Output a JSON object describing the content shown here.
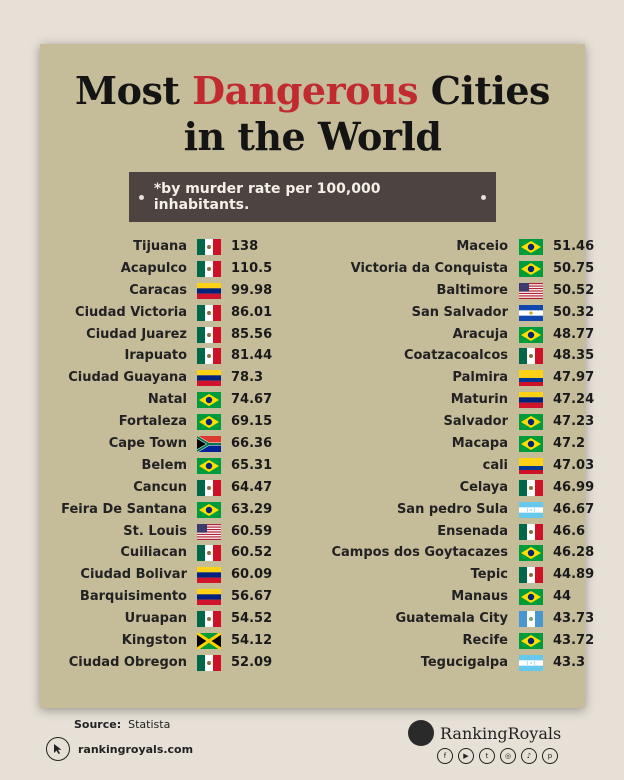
{
  "title": {
    "line1_pre": "Most",
    "line1_accent": "Dangerous",
    "line1_post": "Cities",
    "line2": "in the World"
  },
  "subtitle": "*by murder rate per 100,000 inhabitants.",
  "left_column": [
    {
      "city": "Tijuana",
      "flag": "mexico",
      "rate": "138"
    },
    {
      "city": "Acapulco",
      "flag": "mexico",
      "rate": "110.5"
    },
    {
      "city": "Caracas",
      "flag": "venezuela",
      "rate": "99.98"
    },
    {
      "city": "Ciudad Victoria",
      "flag": "mexico",
      "rate": "86.01"
    },
    {
      "city": "Ciudad Juarez",
      "flag": "mexico",
      "rate": "85.56"
    },
    {
      "city": "Irapuato",
      "flag": "mexico",
      "rate": "81.44"
    },
    {
      "city": "Ciudad Guayana",
      "flag": "venezuela",
      "rate": "78.3"
    },
    {
      "city": "Natal",
      "flag": "brazil",
      "rate": "74.67"
    },
    {
      "city": "Fortaleza",
      "flag": "brazil",
      "rate": "69.15"
    },
    {
      "city": "Cape Town",
      "flag": "south-africa",
      "rate": "66.36"
    },
    {
      "city": "Belem",
      "flag": "brazil",
      "rate": "65.31"
    },
    {
      "city": "Cancun",
      "flag": "mexico",
      "rate": "64.47"
    },
    {
      "city": "Feira De Santana",
      "flag": "brazil",
      "rate": "63.29"
    },
    {
      "city": "St. Louis",
      "flag": "usa",
      "rate": "60.59"
    },
    {
      "city": "Cuiliacan",
      "flag": "mexico",
      "rate": "60.52"
    },
    {
      "city": "Ciudad Bolivar",
      "flag": "venezuela",
      "rate": "60.09"
    },
    {
      "city": "Barquisimento",
      "flag": "venezuela",
      "rate": "56.67"
    },
    {
      "city": "Uruapan",
      "flag": "mexico",
      "rate": "54.52"
    },
    {
      "city": "Kingston",
      "flag": "jamaica",
      "rate": "54.12"
    },
    {
      "city": "Ciudad Obregon",
      "flag": "mexico",
      "rate": "52.09"
    }
  ],
  "right_column": [
    {
      "city": "Maceio",
      "flag": "brazil",
      "rate": "51.46"
    },
    {
      "city": "Victoria da Conquista",
      "flag": "brazil",
      "rate": "50.75"
    },
    {
      "city": "Baltimore",
      "flag": "usa",
      "rate": "50.52"
    },
    {
      "city": "San Salvador",
      "flag": "el-salvador",
      "rate": "50.32"
    },
    {
      "city": "Aracuja",
      "flag": "brazil",
      "rate": "48.77"
    },
    {
      "city": "Coatzacoalcos",
      "flag": "mexico",
      "rate": "48.35"
    },
    {
      "city": "Palmira",
      "flag": "colombia",
      "rate": "47.97"
    },
    {
      "city": "Maturin",
      "flag": "venezuela",
      "rate": "47.24"
    },
    {
      "city": "Salvador",
      "flag": "brazil",
      "rate": "47.23"
    },
    {
      "city": "Macapa",
      "flag": "brazil",
      "rate": "47.2"
    },
    {
      "city": "cali",
      "flag": "colombia",
      "rate": "47.03"
    },
    {
      "city": "Celaya",
      "flag": "mexico",
      "rate": "46.99"
    },
    {
      "city": "San pedro Sula",
      "flag": "honduras",
      "rate": "46.67"
    },
    {
      "city": "Ensenada",
      "flag": "mexico",
      "rate": "46.6"
    },
    {
      "city": "Campos dos Goytacazes",
      "flag": "brazil",
      "rate": "46.28"
    },
    {
      "city": "Tepic",
      "flag": "mexico",
      "rate": "44.89"
    },
    {
      "city": "Manaus",
      "flag": "brazil",
      "rate": "44"
    },
    {
      "city": "Guatemala City",
      "flag": "guatemala",
      "rate": "43.73"
    },
    {
      "city": "Recife",
      "flag": "brazil",
      "rate": "43.72"
    },
    {
      "city": "Tegucigalpa",
      "flag": "honduras",
      "rate": "43.3"
    }
  ],
  "footer": {
    "source_label": "Source:",
    "source_value": "Statista",
    "website": "rankingroyals.com",
    "brand_name": "RankingRoyals",
    "social_icons": [
      "facebook-icon",
      "youtube-icon",
      "twitter-icon",
      "instagram-icon",
      "tiktok-icon",
      "pinterest-icon"
    ]
  }
}
